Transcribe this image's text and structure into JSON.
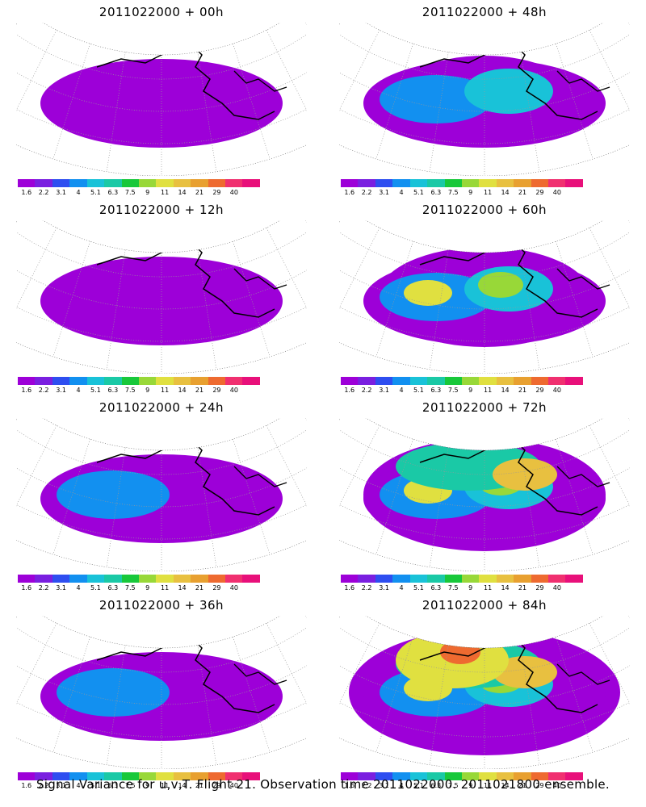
{
  "panels": [
    {
      "title": "2011022000 + 00h",
      "level": 0
    },
    {
      "title": "2011022000 + 48h",
      "level": 3
    },
    {
      "title": "2011022000 + 12h",
      "level": 1
    },
    {
      "title": "2011022000 + 60h",
      "level": 4
    },
    {
      "title": "2011022000 + 24h",
      "level": 2
    },
    {
      "title": "2011022000 + 72h",
      "level": 5
    },
    {
      "title": "2011022000 + 36h",
      "level": 2
    },
    {
      "title": "2011022000 + 84h",
      "level": 6
    }
  ],
  "colorbar": {
    "labels": [
      "1.6",
      "2.2",
      "3.1",
      "4",
      "5.1",
      "6.3",
      "7.5",
      "9",
      "11",
      "14",
      "21",
      "29",
      "40"
    ],
    "colors": [
      "#9d00d8",
      "#7a1fe0",
      "#2e4ef0",
      "#1290f0",
      "#19c2d8",
      "#1ac9a6",
      "#18c83a",
      "#98d838",
      "#e0e040",
      "#e8c040",
      "#e8a030",
      "#ee6a30",
      "#f03070",
      "#e8107a"
    ]
  },
  "caption": "Signal Variance for u,v,T. Flight 21. Observation time 2011022000. 2011021800 ensemble."
}
